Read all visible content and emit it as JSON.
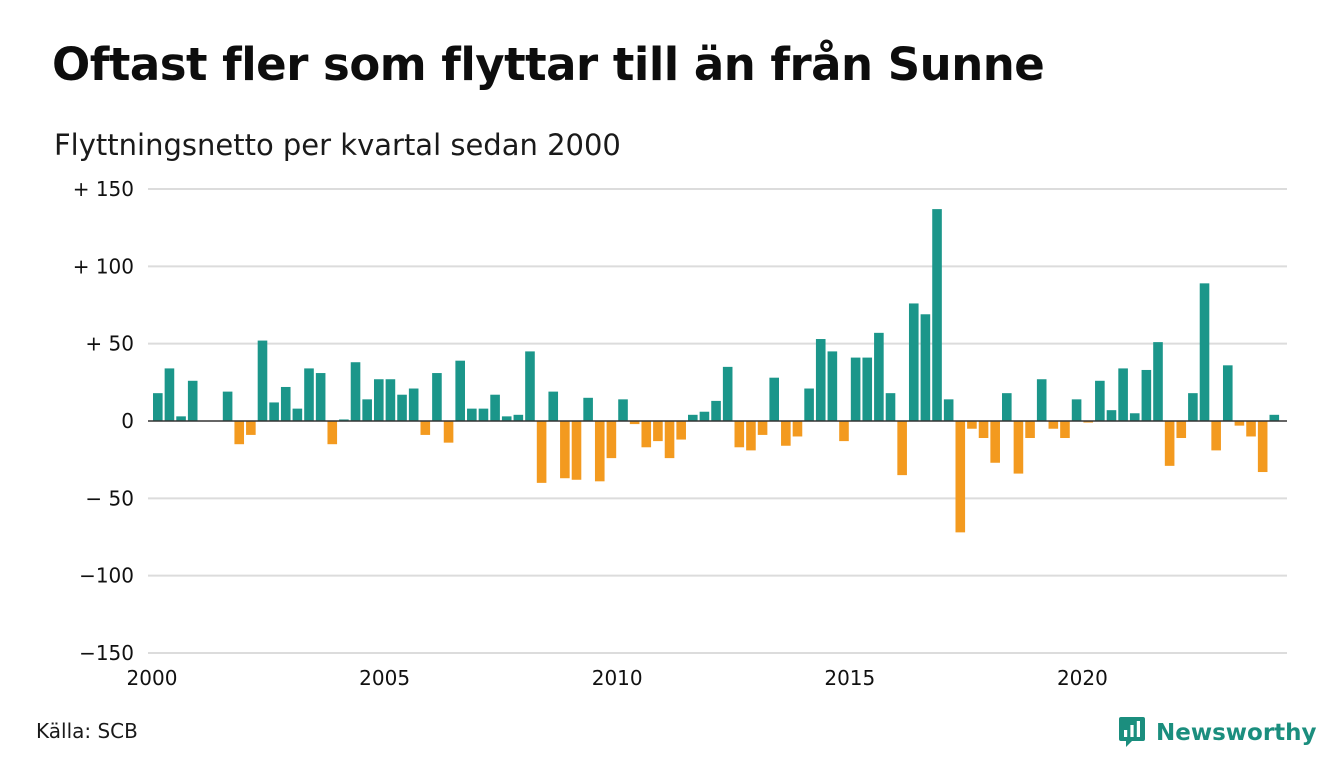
{
  "header": {
    "title": "Oftast fler som flyttar till än från Sunne",
    "subtitle": "Flyttningsnetto per kvartal sedan 2000"
  },
  "footer": {
    "source": "Källa: SCB",
    "brand": "Newsworthy",
    "brand_icon": "chart-bubble-icon"
  },
  "colors": {
    "positive": "#1b968a",
    "negative": "#f39a1f",
    "grid": "#dcdcdc",
    "zero_line": "#333333",
    "brand": "#1b8e7e"
  },
  "chart_data": {
    "type": "bar",
    "title": "Oftast fler som flyttar till än från Sunne",
    "subtitle": "Flyttningsnetto per kvartal sedan 2000",
    "xlabel": "",
    "ylabel": "",
    "ylim": [
      -150,
      150
    ],
    "y_ticks": [
      150,
      100,
      50,
      0,
      -50,
      -100,
      -150
    ],
    "y_tick_labels": [
      "+ 150",
      "+ 100",
      "+  50",
      "0",
      "− 50",
      "−100",
      "−150"
    ],
    "x_ticks": [
      2000,
      2005,
      2010,
      2015,
      2020
    ],
    "x_tick_labels": [
      "2000",
      "2005",
      "2010",
      "2015",
      "2020"
    ],
    "grid": true,
    "legend": "none",
    "series": [
      {
        "start_year": 2000,
        "start_quarter": 1,
        "values": [
          18,
          34,
          3,
          26,
          0,
          0,
          19,
          -15,
          -9,
          52,
          12,
          22,
          8,
          34,
          31,
          -15,
          1,
          38,
          14,
          27,
          27,
          17,
          21,
          -9,
          31,
          -14,
          39,
          8,
          8,
          17,
          3,
          4,
          45,
          -40,
          19,
          -37,
          -38,
          15,
          -39,
          -24,
          14,
          -2,
          -17,
          -13,
          -24,
          -12,
          4,
          6,
          13,
          35,
          -17,
          -19,
          -9,
          28,
          -16,
          -10,
          21,
          53,
          45,
          -13,
          41,
          41,
          57,
          18,
          -35,
          76,
          69,
          137,
          14,
          -72,
          -5,
          -11,
          -27,
          18,
          -34,
          -11,
          27,
          -5,
          -11,
          14,
          -1,
          26,
          7,
          34,
          5,
          33,
          51,
          -29,
          -11,
          18,
          89,
          -19,
          36,
          -3,
          -10,
          -33,
          4
        ]
      }
    ]
  }
}
